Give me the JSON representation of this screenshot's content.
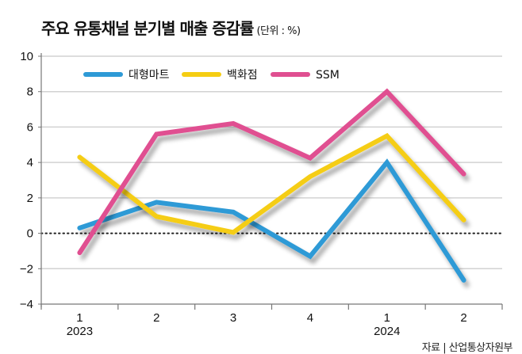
{
  "chart_data": {
    "type": "line",
    "title": "주요 유통채널 분기별 매출 증감률",
    "unit_note": "(단위 : %)",
    "xlabel": "",
    "ylabel": "",
    "categories": [
      "1",
      "2",
      "3",
      "4",
      "1",
      "2"
    ],
    "year_labels": [
      {
        "index": 0,
        "label": "2023"
      },
      {
        "index": 4,
        "label": "2024"
      }
    ],
    "ylim": [
      -4,
      10
    ],
    "yticks": [
      -4,
      -2,
      0,
      2,
      4,
      6,
      8,
      10
    ],
    "grid": true,
    "zero_line": "dotted",
    "legend_position": "top",
    "series": [
      {
        "name": "대형마트",
        "color": "#2e9ad6",
        "values": [
          0.3,
          1.75,
          1.2,
          -1.3,
          4.0,
          -2.65
        ]
      },
      {
        "name": "백화점",
        "color": "#f5cd12",
        "values": [
          4.3,
          0.95,
          0.05,
          3.2,
          5.5,
          0.75
        ]
      },
      {
        "name": "SSM",
        "color": "#e04f91",
        "values": [
          -1.1,
          5.6,
          6.2,
          4.25,
          8.0,
          3.35
        ]
      }
    ],
    "source": "자료 | 산업통상자원부"
  }
}
